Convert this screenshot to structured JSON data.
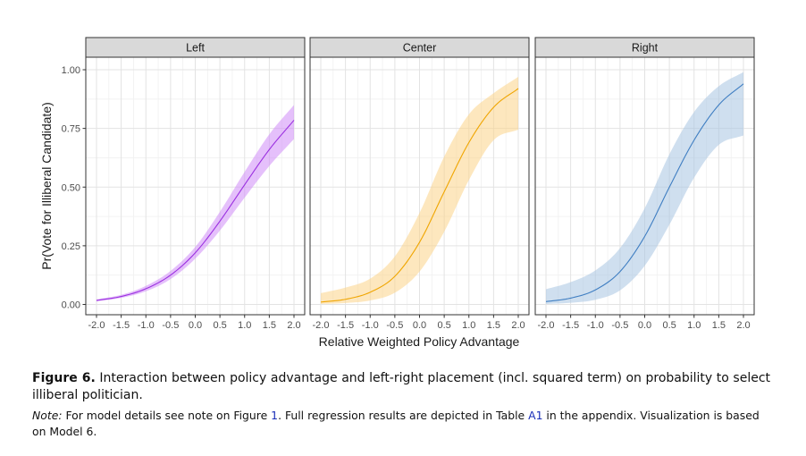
{
  "chart_data": {
    "type": "line",
    "title": "",
    "xlabel": "Relative Weighted Policy Advantage",
    "ylabel": "Pr(Vote for Illiberal Candidate)",
    "xlim": [
      -2.0,
      2.0
    ],
    "ylim": [
      0.0,
      1.0
    ],
    "x_ticks": [
      -2.0,
      -1.5,
      -1.0,
      -0.5,
      0.0,
      0.5,
      1.0,
      1.5,
      2.0
    ],
    "x_tick_labels": [
      "-2.0",
      "-1.5",
      "-1.0",
      "-0.5",
      "0.0",
      "0.5",
      "1.0",
      "1.5",
      "2.0"
    ],
    "y_ticks": [
      0.0,
      0.25,
      0.5,
      0.75,
      1.0
    ],
    "y_tick_labels": [
      "0.00",
      "0.25",
      "0.50",
      "0.75",
      "1.00"
    ],
    "grid": true,
    "x": [
      -2.0,
      -1.5,
      -1.0,
      -0.5,
      0.0,
      0.5,
      1.0,
      1.5,
      2.0
    ],
    "panels": [
      {
        "name": "Left",
        "color": "#9b30e0",
        "fill": "#cf8df7",
        "y": [
          0.017,
          0.034,
          0.067,
          0.125,
          0.22,
          0.355,
          0.51,
          0.66,
          0.785
        ],
        "lower": [
          0.013,
          0.028,
          0.056,
          0.108,
          0.195,
          0.315,
          0.455,
          0.59,
          0.705
        ],
        "upper": [
          0.022,
          0.041,
          0.079,
          0.143,
          0.245,
          0.395,
          0.565,
          0.725,
          0.85
        ]
      },
      {
        "name": "Center",
        "color": "#f0a500",
        "fill": "#fbd488",
        "y": [
          0.01,
          0.022,
          0.052,
          0.12,
          0.265,
          0.48,
          0.69,
          0.84,
          0.92
        ],
        "lower": [
          0.002,
          0.006,
          0.017,
          0.05,
          0.14,
          0.31,
          0.53,
          0.7,
          0.745
        ],
        "upper": [
          0.048,
          0.072,
          0.11,
          0.205,
          0.39,
          0.63,
          0.81,
          0.9,
          0.97
        ]
      },
      {
        "name": "Right",
        "color": "#3f7ec2",
        "fill": "#a8c4e2",
        "y": [
          0.012,
          0.027,
          0.062,
          0.14,
          0.29,
          0.5,
          0.7,
          0.85,
          0.94
        ],
        "lower": [
          0.002,
          0.007,
          0.02,
          0.06,
          0.165,
          0.34,
          0.54,
          0.68,
          0.72
        ],
        "upper": [
          0.065,
          0.095,
          0.145,
          0.24,
          0.41,
          0.64,
          0.82,
          0.93,
          0.99
        ]
      }
    ]
  },
  "caption": {
    "label": "Figure 6.",
    "title": "Interaction between policy advantage and left-right placement (incl. squared term) on probability to select illiberal politician.",
    "note_label": "Note:",
    "note_part1": "For model details see note on Figure",
    "note_ref1": "1",
    "note_part2": ". Full regression results are depicted in Table",
    "note_ref2": "A1",
    "note_part3": "in the appendix. Visualization is based on Model 6."
  }
}
